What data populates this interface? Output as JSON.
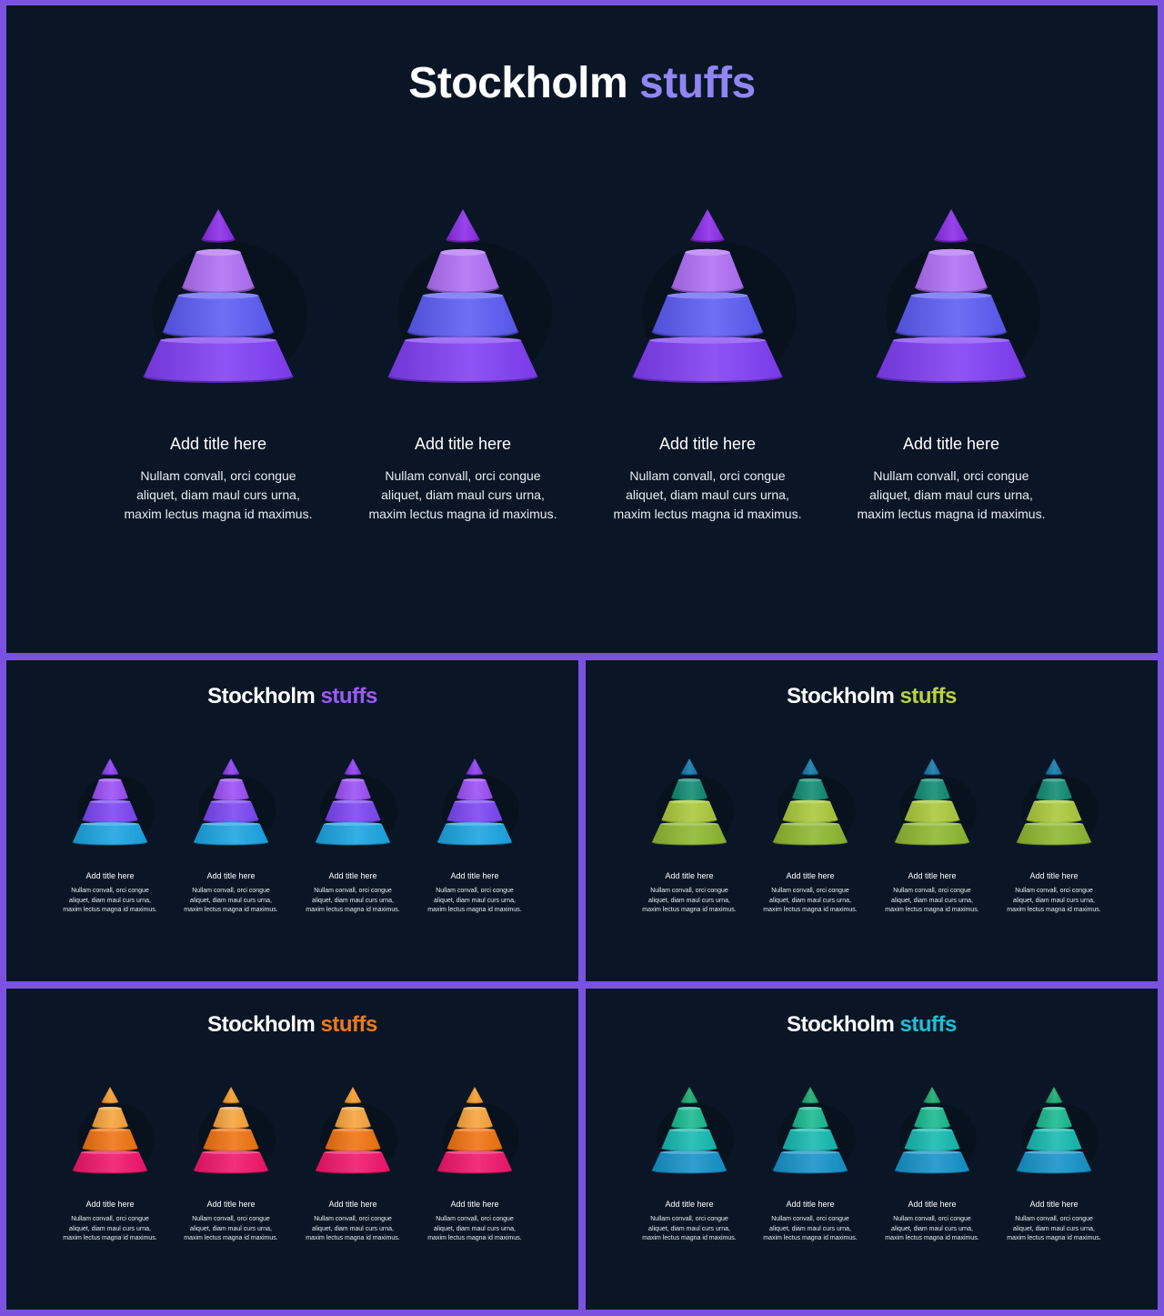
{
  "slides": [
    {
      "title_main": "Stockholm",
      "title_accent": "stuffs",
      "accent_color": "#8f86f3",
      "colors": [
        "#8a2be8",
        "#b06ef5",
        "#5a5bf3",
        "#7f3df3"
      ],
      "cards": [
        {
          "title": "Add title here",
          "body": "Nullam convall, orci congue aliquet, diam maul curs urna, maxim lectus magna id maximus."
        },
        {
          "title": "Add title here",
          "body": "Nullam convall, orci congue aliquet, diam maul curs urna, maxim lectus magna id maximus."
        },
        {
          "title": "Add title here",
          "body": "Nullam convall, orci congue aliquet, diam maul curs urna, maxim lectus magna id maximus."
        },
        {
          "title": "Add title here",
          "body": "Nullam convall, orci congue aliquet, diam maul curs urna, maxim lectus magna id maximus."
        }
      ]
    },
    {
      "title_main": "Stockholm",
      "title_accent": "stuffs",
      "accent_color": "#9b5cf5",
      "colors": [
        "#8a3bf0",
        "#9a4ef5",
        "#7a45f2",
        "#1aa3e0"
      ],
      "cards": [
        {
          "title": "Add title here",
          "body": "Nullam convall, orci congue aliquet, diam maul curs urna, maxim lectus magna id maximus."
        },
        {
          "title": "Add title here",
          "body": "Nullam convall, orci congue aliquet, diam maul curs urna, maxim lectus magna id maximus."
        },
        {
          "title": "Add title here",
          "body": "Nullam convall, orci congue aliquet, diam maul curs urna, maxim lectus magna id maximus."
        },
        {
          "title": "Add title here",
          "body": "Nullam convall, orci congue aliquet, diam maul curs urna, maxim lectus magna id maximus."
        }
      ]
    },
    {
      "title_main": "Stockholm",
      "title_accent": "stuffs",
      "accent_color": "#b9d33f",
      "colors": [
        "#1277a6",
        "#0f8a72",
        "#a9c93a",
        "#8db62f"
      ],
      "cards": [
        {
          "title": "Add title here",
          "body": "Nullam convall, orci congue aliquet, diam maul curs urna, maxim lectus magna id maximus."
        },
        {
          "title": "Add title here",
          "body": "Nullam convall, orci congue aliquet, diam maul curs urna, maxim lectus magna id maximus."
        },
        {
          "title": "Add title here",
          "body": "Nullam convall, orci congue aliquet, diam maul curs urna, maxim lectus magna id maximus."
        },
        {
          "title": "Add title here",
          "body": "Nullam convall, orci congue aliquet, diam maul curs urna, maxim lectus magna id maximus."
        }
      ]
    },
    {
      "title_main": "Stockholm",
      "title_accent": "stuffs",
      "accent_color": "#f07a1a",
      "colors": [
        "#f59a2a",
        "#f7a33a",
        "#f0720f",
        "#f0146a"
      ],
      "cards": [
        {
          "title": "Add title here",
          "body": "Nullam convall, orci congue aliquet, diam maul curs urna, maxim lectus magna id maximus."
        },
        {
          "title": "Add title here",
          "body": "Nullam convall, orci congue aliquet, diam maul curs urna, maxim lectus magna id maximus."
        },
        {
          "title": "Add title here",
          "body": "Nullam convall, orci congue aliquet, diam maul curs urna, maxim lectus magna id maximus."
        },
        {
          "title": "Add title here",
          "body": "Nullam convall, orci congue aliquet, diam maul curs urna, maxim lectus magna id maximus."
        }
      ]
    },
    {
      "title_main": "Stockholm",
      "title_accent": "stuffs",
      "accent_color": "#1ebfd2",
      "colors": [
        "#16a86c",
        "#17b98e",
        "#14b8b0",
        "#1491c8"
      ],
      "cards": [
        {
          "title": "Add title here",
          "body": "Nullam convall, orci congue aliquet, diam maul curs urna, maxim lectus magna id maximus."
        },
        {
          "title": "Add title here",
          "body": "Nullam convall, orci congue aliquet, diam maul curs urna, maxim lectus magna id maximus."
        },
        {
          "title": "Add title here",
          "body": "Nullam convall, orci congue aliquet, diam maul curs urna, maxim lectus magna id maximus."
        },
        {
          "title": "Add title here",
          "body": "Nullam convall, orci congue aliquet, diam maul curs urna, maxim lectus magna id maximus."
        }
      ]
    }
  ]
}
